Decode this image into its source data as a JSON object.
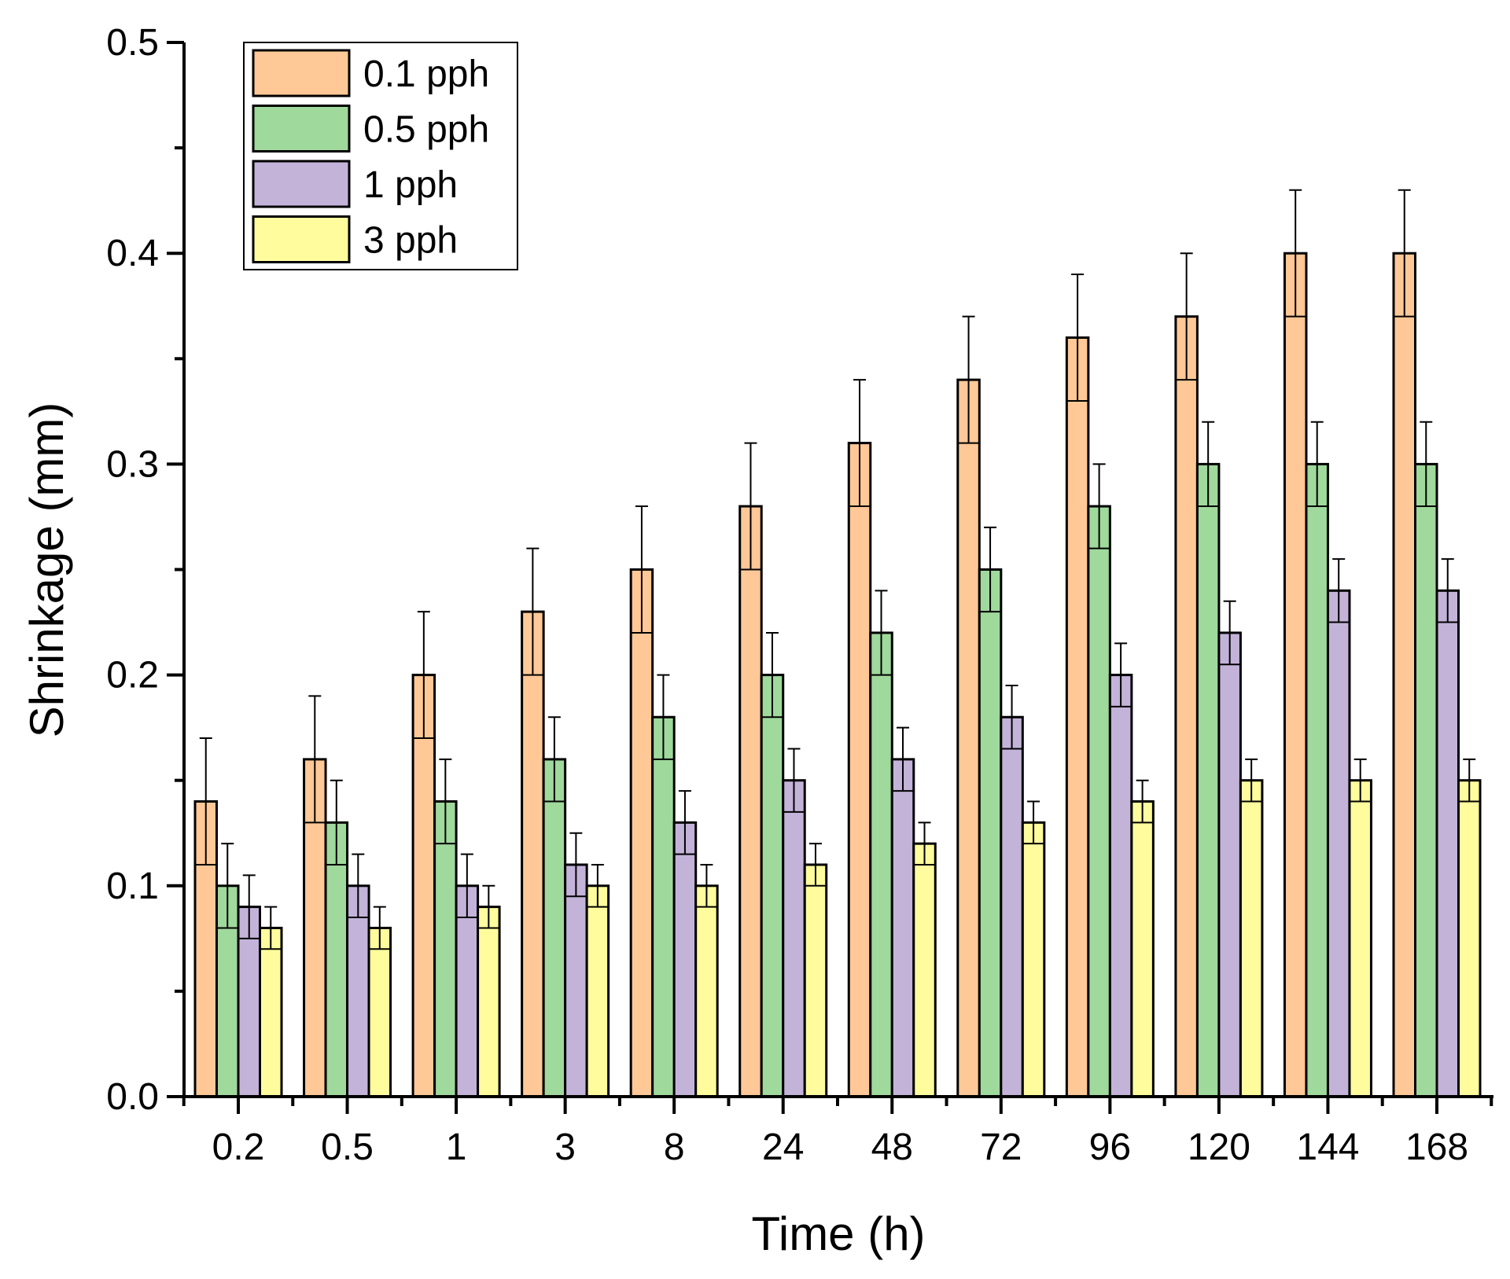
{
  "chart_data": {
    "type": "bar",
    "title": "",
    "xlabel": "Time (h)",
    "ylabel": "Shrinkage (mm)",
    "ylim": [
      0,
      0.5
    ],
    "yticks": [
      "0.0",
      "0.1",
      "0.2",
      "0.3",
      "0.4",
      "0.5"
    ],
    "grid": false,
    "legend_position": "top-left",
    "categories": [
      "0.2",
      "0.5",
      "1",
      "3",
      "8",
      "24",
      "48",
      "72",
      "96",
      "120",
      "144",
      "168"
    ],
    "series": [
      {
        "name": "0.1 pph",
        "color": "#FFC896",
        "values": [
          0.14,
          0.16,
          0.2,
          0.23,
          0.25,
          0.28,
          0.31,
          0.34,
          0.36,
          0.37,
          0.4,
          0.4
        ],
        "error": 0.03
      },
      {
        "name": "0.5 pph",
        "color": "#9FD99C",
        "values": [
          0.1,
          0.13,
          0.14,
          0.16,
          0.18,
          0.2,
          0.22,
          0.25,
          0.28,
          0.3,
          0.3,
          0.3
        ],
        "error": 0.02
      },
      {
        "name": "1 pph",
        "color": "#C3B3D9",
        "values": [
          0.09,
          0.1,
          0.1,
          0.11,
          0.13,
          0.15,
          0.16,
          0.18,
          0.2,
          0.22,
          0.24,
          0.24
        ],
        "error": 0.015
      },
      {
        "name": "3 pph",
        "color": "#FFFC9E",
        "values": [
          0.08,
          0.08,
          0.09,
          0.1,
          0.1,
          0.11,
          0.12,
          0.13,
          0.14,
          0.15,
          0.15,
          0.15
        ],
        "error": 0.01
      }
    ]
  }
}
